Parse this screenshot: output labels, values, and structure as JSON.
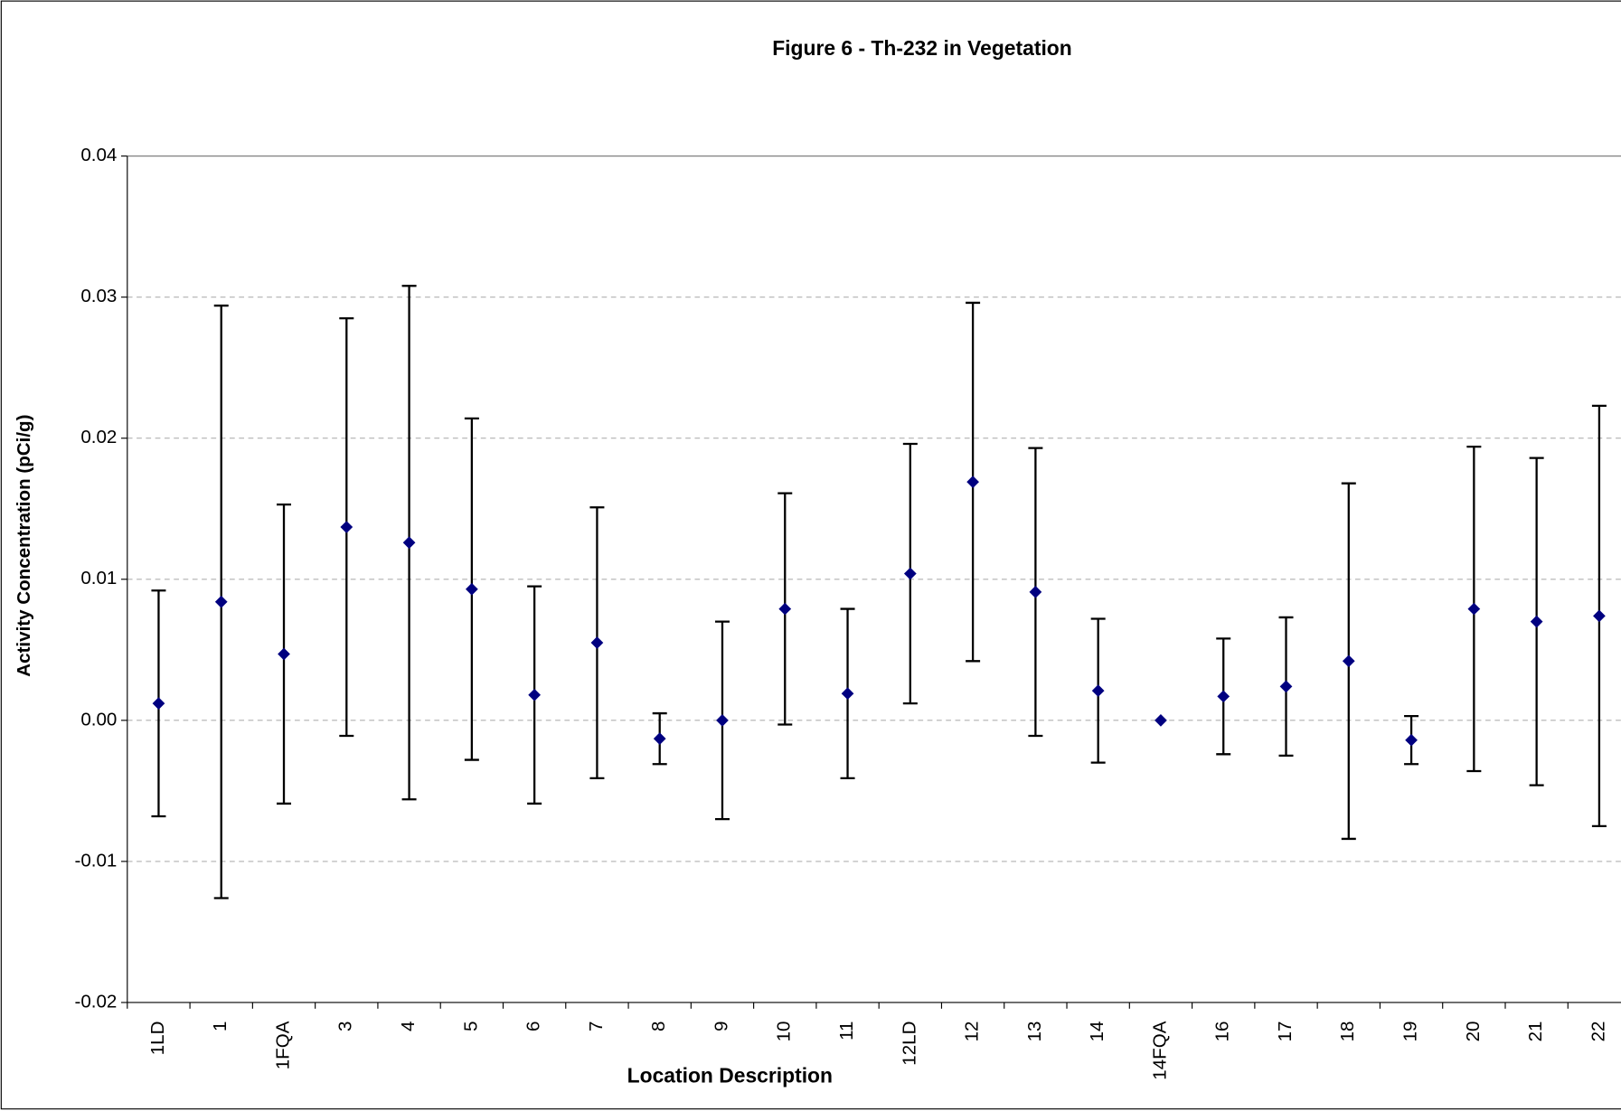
{
  "chart_data": {
    "type": "errorbar",
    "title": "Figure 6 - Th-232 in Vegetation",
    "x_label": "Location Description",
    "y_label": "Activity Concentration (pCi/g)",
    "categories": [
      "1LD",
      "1",
      "1FQA",
      "3",
      "4",
      "5",
      "6",
      "7",
      "8",
      "9",
      "10",
      "11",
      "12LD",
      "12",
      "13",
      "14",
      "14FQA",
      "16",
      "17",
      "18",
      "19",
      "20",
      "21",
      "22"
    ],
    "series": [
      {
        "color": "#000080",
        "values": [
          0.0012,
          0.0084,
          0.0047,
          0.0137,
          0.0126,
          0.0093,
          0.0018,
          0.0055,
          -0.0013,
          0,
          0.0079,
          0.0019,
          0.0104,
          0.0169,
          0.0091,
          0.0021,
          0,
          0.0017,
          0.0024,
          0.0042,
          -0.0014,
          0.0079,
          0.007,
          0.0074
        ],
        "errors": [
          0.008,
          0.021,
          0.0106,
          0.0148,
          0.0182,
          0.0121,
          0.0077,
          0.0096,
          0.0018,
          0.007,
          0.0082,
          0.006,
          0.0092,
          0.0127,
          0.0102,
          0.0051,
          0,
          0.0041,
          0.0049,
          0.0126,
          0.0017,
          0.0115,
          0.0116,
          0.0149
        ]
      }
    ],
    "ylim": [
      -0.02,
      0.04
    ],
    "yticks": [
      -0.02,
      -0.01,
      {
        "value": 0,
        "label": "0.00"
      },
      0.01,
      0.02,
      0.03,
      0.04
    ],
    "grid": true
  }
}
